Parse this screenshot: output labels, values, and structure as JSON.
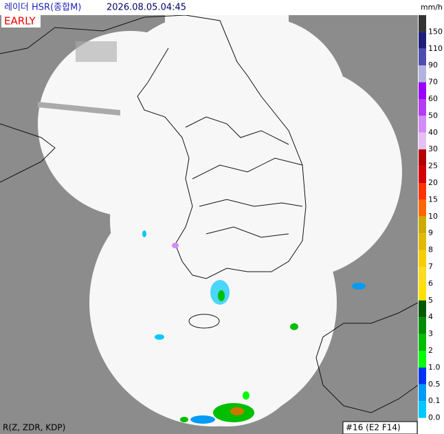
{
  "header": {
    "title": "레이더 HSR(종합M)",
    "time": "2026.08.05.04:45",
    "badge": "EARLY",
    "unit": "mm/h"
  },
  "legend": {
    "items": [
      {
        "label": "150",
        "color": "#333333"
      },
      {
        "label": "110",
        "color": "#1f1f7a"
      },
      {
        "label": "90",
        "color": "#4c4eb1"
      },
      {
        "label": "70",
        "color": "#b3b4de"
      },
      {
        "label": "60",
        "color": "#9900ff"
      },
      {
        "label": "50",
        "color": "#b43cf5"
      },
      {
        "label": "40",
        "color": "#d28cf5"
      },
      {
        "label": "30",
        "color": "#e6bef5"
      },
      {
        "label": "25",
        "color": "#b40000"
      },
      {
        "label": "20",
        "color": "#d20000"
      },
      {
        "label": "15",
        "color": "#ff3200"
      },
      {
        "label": "10",
        "color": "#ff6600"
      },
      {
        "label": "9",
        "color": "#ccaa00"
      },
      {
        "label": "8",
        "color": "#e0b900"
      },
      {
        "label": "7",
        "color": "#f9cd00"
      },
      {
        "label": "6",
        "color": "#ffdc1f"
      },
      {
        "label": "5",
        "color": "#ffe100"
      },
      {
        "label": "4",
        "color": "#005a00"
      },
      {
        "label": "3",
        "color": "#008c00"
      },
      {
        "label": "2",
        "color": "#00be00"
      },
      {
        "label": "1.0",
        "color": "#00ff00"
      },
      {
        "label": "0.5",
        "color": "#0033f5"
      },
      {
        "label": "0.1",
        "color": "#009bf5"
      },
      {
        "label": "0.0",
        "color": "#00c8ff"
      }
    ]
  },
  "footer": {
    "method": "R(Z, ZDR, KDP)",
    "scan": "#16 (E2 F14)"
  }
}
